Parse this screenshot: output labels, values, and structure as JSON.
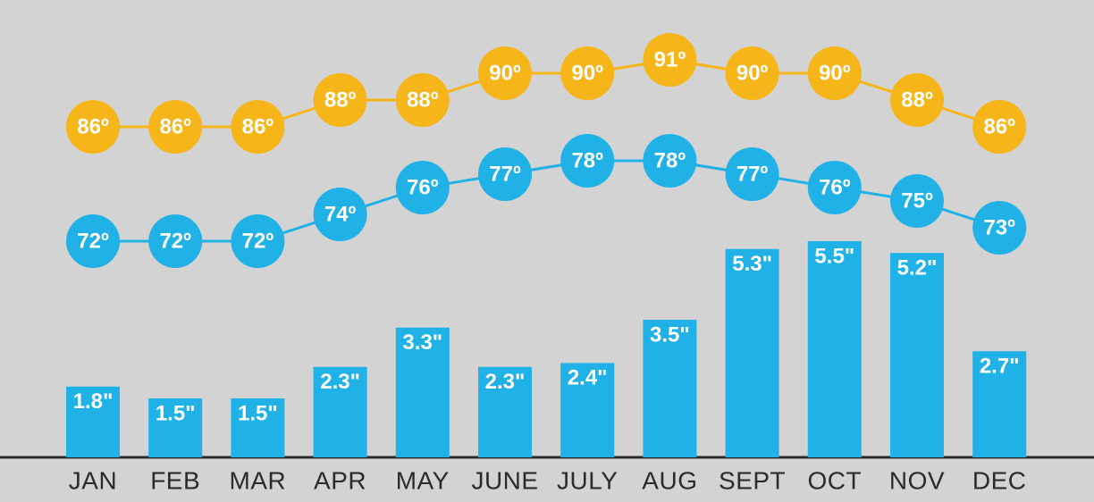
{
  "chart_data": {
    "type": "bar",
    "categories": [
      "JAN",
      "FEB",
      "MAR",
      "APR",
      "MAY",
      "JUNE",
      "JULY",
      "AUG",
      "SEPT",
      "OCT",
      "NOV",
      "DEC"
    ],
    "series": [
      {
        "type": "bar",
        "color": "#20b1e7",
        "values": [
          1.8,
          1.5,
          1.5,
          2.3,
          3.3,
          2.3,
          2.4,
          3.5,
          5.3,
          5.5,
          5.2,
          2.7
        ],
        "value_labels": [
          "1.8\"",
          "1.5\"",
          "1.5\"",
          "2.3\"",
          "3.3\"",
          "2.3\"",
          "2.4\"",
          "3.5\"",
          "5.3\"",
          "5.5\"",
          "5.2\"",
          "2.7\""
        ]
      },
      {
        "type": "line",
        "color": "#f6b518",
        "values": [
          86,
          86,
          86,
          88,
          88,
          90,
          90,
          91,
          90,
          90,
          88,
          86
        ],
        "value_labels": [
          "86º",
          "86º",
          "86º",
          "88º",
          "88º",
          "90º",
          "90º",
          "91º",
          "90º",
          "90º",
          "88º",
          "86º"
        ]
      },
      {
        "type": "line",
        "color": "#20b1e7",
        "values": [
          72,
          72,
          72,
          74,
          76,
          77,
          78,
          78,
          77,
          76,
          75,
          73
        ],
        "value_labels": [
          "72º",
          "72º",
          "72º",
          "74º",
          "76º",
          "77º",
          "78º",
          "78º",
          "77º",
          "76º",
          "75º",
          "73º"
        ]
      }
    ]
  }
}
